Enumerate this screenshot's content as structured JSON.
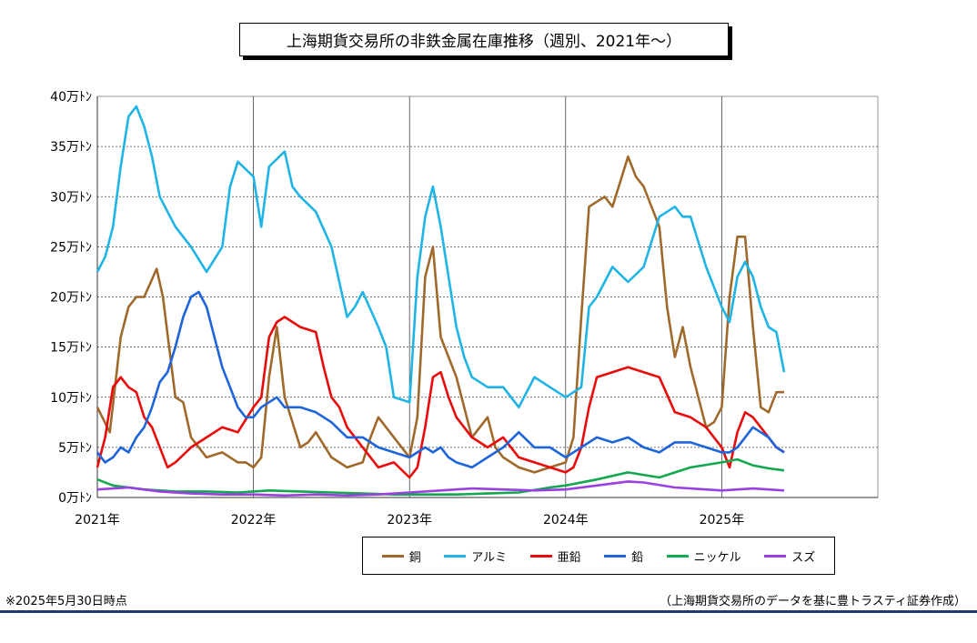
{
  "chart_data": {
    "type": "line",
    "title": "上海期貨交易所の非鉄金属在庫推移（週別、2021年～）",
    "y_ticks": [
      "0万ﾄﾝ",
      "5万ﾄﾝ",
      "10万ﾄﾝ",
      "15万ﾄﾝ",
      "20万ﾄﾝ",
      "25万ﾄﾝ",
      "30万ﾄﾝ",
      "35万ﾄﾝ",
      "40万ﾄﾝ"
    ],
    "x_ticks": [
      "2021年",
      "2022年",
      "2023年",
      "2024年",
      "2025年"
    ],
    "ylim": [
      0,
      40
    ],
    "xlim": [
      2021.0,
      2026.0
    ],
    "grid": true,
    "legend_position": "bottom",
    "series": [
      {
        "name": "銅",
        "color": "#a0692c",
        "x": [
          2021.0,
          2021.08,
          2021.15,
          2021.2,
          2021.25,
          2021.3,
          2021.38,
          2021.42,
          2021.5,
          2021.55,
          2021.6,
          2021.7,
          2021.8,
          2021.9,
          2021.95,
          2022.0,
          2022.05,
          2022.1,
          2022.15,
          2022.2,
          2022.3,
          2022.35,
          2022.4,
          2022.5,
          2022.6,
          2022.7,
          2022.75,
          2022.8,
          2022.9,
          2023.0,
          2023.05,
          2023.1,
          2023.15,
          2023.2,
          2023.25,
          2023.3,
          2023.4,
          2023.5,
          2023.55,
          2023.6,
          2023.7,
          2023.8,
          2023.9,
          2024.0,
          2024.05,
          2024.1,
          2024.15,
          2024.25,
          2024.3,
          2024.4,
          2024.45,
          2024.5,
          2024.6,
          2024.65,
          2024.7,
          2024.75,
          2024.8,
          2024.9,
          2024.95,
          2025.0,
          2025.05,
          2025.1,
          2025.15,
          2025.2,
          2025.25,
          2025.3,
          2025.35,
          2025.4
        ],
        "values": [
          9,
          6.5,
          16,
          19,
          20,
          20,
          22.8,
          20,
          10,
          9.5,
          6,
          4,
          4.5,
          3.5,
          3.5,
          3,
          4,
          12,
          17,
          10,
          5,
          5.5,
          6.5,
          4,
          3,
          3.5,
          6,
          8,
          6,
          4,
          8,
          22,
          25,
          16,
          14,
          12,
          6,
          8,
          5,
          4,
          3,
          2.5,
          3,
          3.5,
          6,
          18,
          29,
          30,
          29,
          34,
          32,
          31,
          27,
          19,
          14,
          17,
          13,
          7,
          7.5,
          9,
          20,
          26,
          26,
          17,
          9,
          8.5,
          10.5,
          10.5
        ]
      },
      {
        "name": "アルミ",
        "color": "#1eb4e6",
        "x": [
          2021.0,
          2021.05,
          2021.1,
          2021.15,
          2021.2,
          2021.25,
          2021.3,
          2021.35,
          2021.4,
          2021.5,
          2021.6,
          2021.7,
          2021.8,
          2021.85,
          2021.9,
          2022.0,
          2022.05,
          2022.1,
          2022.2,
          2022.25,
          2022.3,
          2022.4,
          2022.5,
          2022.6,
          2022.65,
          2022.7,
          2022.8,
          2022.85,
          2022.9,
          2023.0,
          2023.05,
          2023.1,
          2023.15,
          2023.2,
          2023.25,
          2023.3,
          2023.35,
          2023.4,
          2023.5,
          2023.6,
          2023.7,
          2023.8,
          2023.9,
          2024.0,
          2024.1,
          2024.15,
          2024.2,
          2024.3,
          2024.4,
          2024.5,
          2024.6,
          2024.7,
          2024.75,
          2024.8,
          2024.9,
          2025.0,
          2025.05,
          2025.1,
          2025.15,
          2025.2,
          2025.25,
          2025.3,
          2025.35,
          2025.4
        ],
        "values": [
          22.5,
          24,
          27,
          33,
          38,
          39,
          37,
          34,
          30,
          27,
          25,
          22.5,
          25,
          31,
          33.5,
          32,
          27,
          33,
          34.5,
          31,
          30,
          28.5,
          25,
          18,
          19,
          20.5,
          17,
          15,
          10,
          9.5,
          22,
          28,
          31,
          27,
          22,
          17,
          14,
          12,
          11,
          11,
          9,
          12,
          11,
          10,
          11,
          19,
          20,
          23,
          21.5,
          23,
          28,
          29,
          28,
          28,
          23,
          19,
          17.5,
          22,
          23.5,
          22,
          19,
          17,
          16.5,
          12.5
        ]
      },
      {
        "name": "亜鉛",
        "color": "#ea0a0a",
        "x": [
          2021.0,
          2021.05,
          2021.1,
          2021.15,
          2021.2,
          2021.25,
          2021.3,
          2021.35,
          2021.45,
          2021.5,
          2021.6,
          2021.7,
          2021.8,
          2021.9,
          2022.0,
          2022.05,
          2022.1,
          2022.15,
          2022.2,
          2022.3,
          2022.4,
          2022.45,
          2022.5,
          2022.55,
          2022.6,
          2022.7,
          2022.8,
          2022.9,
          2023.0,
          2023.05,
          2023.1,
          2023.15,
          2023.2,
          2023.25,
          2023.3,
          2023.4,
          2023.5,
          2023.6,
          2023.7,
          2023.8,
          2023.9,
          2024.0,
          2024.05,
          2024.1,
          2024.15,
          2024.2,
          2024.3,
          2024.4,
          2024.5,
          2024.6,
          2024.7,
          2024.8,
          2024.9,
          2025.0,
          2025.05,
          2025.1,
          2025.15,
          2025.2,
          2025.25,
          2025.3,
          2025.35,
          2025.4
        ],
        "values": [
          3,
          6,
          11,
          12,
          11,
          10.5,
          8,
          7,
          3,
          3.5,
          5,
          6,
          7,
          6.5,
          9,
          10,
          16,
          17.5,
          18,
          17,
          16.5,
          13,
          10,
          9,
          7,
          5,
          3,
          3.5,
          2,
          3,
          7,
          12,
          12.5,
          10,
          8,
          6,
          5,
          6,
          4,
          3.5,
          3,
          2.5,
          3,
          5,
          9,
          12,
          12.5,
          13,
          12.5,
          12,
          8.5,
          8,
          7,
          5,
          3,
          6.5,
          8.5,
          8,
          7,
          6,
          5,
          4.5
        ]
      },
      {
        "name": "鉛",
        "color": "#1e64dc",
        "x": [
          2021.0,
          2021.05,
          2021.1,
          2021.15,
          2021.2,
          2021.25,
          2021.3,
          2021.35,
          2021.4,
          2021.45,
          2021.5,
          2021.55,
          2021.6,
          2021.65,
          2021.7,
          2021.75,
          2021.8,
          2021.85,
          2021.9,
          2021.95,
          2022.0,
          2022.05,
          2022.1,
          2022.15,
          2022.2,
          2022.3,
          2022.4,
          2022.5,
          2022.6,
          2022.7,
          2022.8,
          2022.9,
          2023.0,
          2023.05,
          2023.1,
          2023.15,
          2023.2,
          2023.25,
          2023.3,
          2023.4,
          2023.5,
          2023.6,
          2023.7,
          2023.8,
          2023.9,
          2024.0,
          2024.1,
          2024.2,
          2024.3,
          2024.4,
          2024.5,
          2024.6,
          2024.7,
          2024.8,
          2024.9,
          2025.0,
          2025.05,
          2025.1,
          2025.15,
          2025.2,
          2025.25,
          2025.3,
          2025.35,
          2025.4
        ],
        "values": [
          4.5,
          3.5,
          4,
          5,
          4.5,
          6,
          7,
          9,
          11.5,
          12.5,
          15,
          18,
          20,
          20.5,
          19,
          16,
          13,
          11,
          9,
          8,
          8,
          9,
          9.5,
          10,
          9,
          9,
          8.5,
          7.5,
          6,
          6,
          5,
          4.5,
          4,
          4.5,
          5,
          4.5,
          5,
          4,
          3.5,
          3,
          4,
          5,
          6.5,
          5,
          5,
          4,
          5,
          6,
          5.5,
          6,
          5,
          4.5,
          5.5,
          5.5,
          5,
          4.5,
          4.5,
          5,
          6,
          7,
          6.5,
          6,
          5,
          4.5
        ]
      },
      {
        "name": "ニッケル",
        "color": "#12a850",
        "x": [
          2021.0,
          2021.1,
          2021.3,
          2021.5,
          2021.7,
          2021.9,
          2022.1,
          2022.3,
          2022.5,
          2022.7,
          2022.9,
          2023.1,
          2023.3,
          2023.5,
          2023.7,
          2023.9,
          2024.0,
          2024.2,
          2024.4,
          2024.6,
          2024.8,
          2025.0,
          2025.1,
          2025.2,
          2025.3,
          2025.4
        ],
        "values": [
          1.8,
          1.2,
          0.8,
          0.6,
          0.6,
          0.5,
          0.7,
          0.6,
          0.5,
          0.4,
          0.3,
          0.3,
          0.3,
          0.4,
          0.5,
          1.0,
          1.2,
          1.8,
          2.5,
          2.0,
          3.0,
          3.5,
          3.8,
          3.2,
          2.9,
          2.7
        ]
      },
      {
        "name": "スズ",
        "color": "#9a40e0",
        "x": [
          2021.0,
          2021.1,
          2021.2,
          2021.4,
          2021.6,
          2021.8,
          2022.0,
          2022.2,
          2022.4,
          2022.6,
          2022.8,
          2023.0,
          2023.2,
          2023.4,
          2023.6,
          2023.8,
          2024.0,
          2024.2,
          2024.4,
          2024.5,
          2024.7,
          2024.9,
          2025.0,
          2025.1,
          2025.2,
          2025.3,
          2025.4
        ],
        "values": [
          0.8,
          0.9,
          1.0,
          0.6,
          0.4,
          0.3,
          0.3,
          0.2,
          0.3,
          0.2,
          0.3,
          0.5,
          0.7,
          0.9,
          0.8,
          0.7,
          0.8,
          1.2,
          1.6,
          1.5,
          1.0,
          0.8,
          0.7,
          0.8,
          0.9,
          0.8,
          0.7
        ]
      }
    ]
  },
  "notes": {
    "left": "※2025年5月30日時点",
    "right": "（上海期貨交易所のデータを基に豊トラスティ証券作成）"
  }
}
